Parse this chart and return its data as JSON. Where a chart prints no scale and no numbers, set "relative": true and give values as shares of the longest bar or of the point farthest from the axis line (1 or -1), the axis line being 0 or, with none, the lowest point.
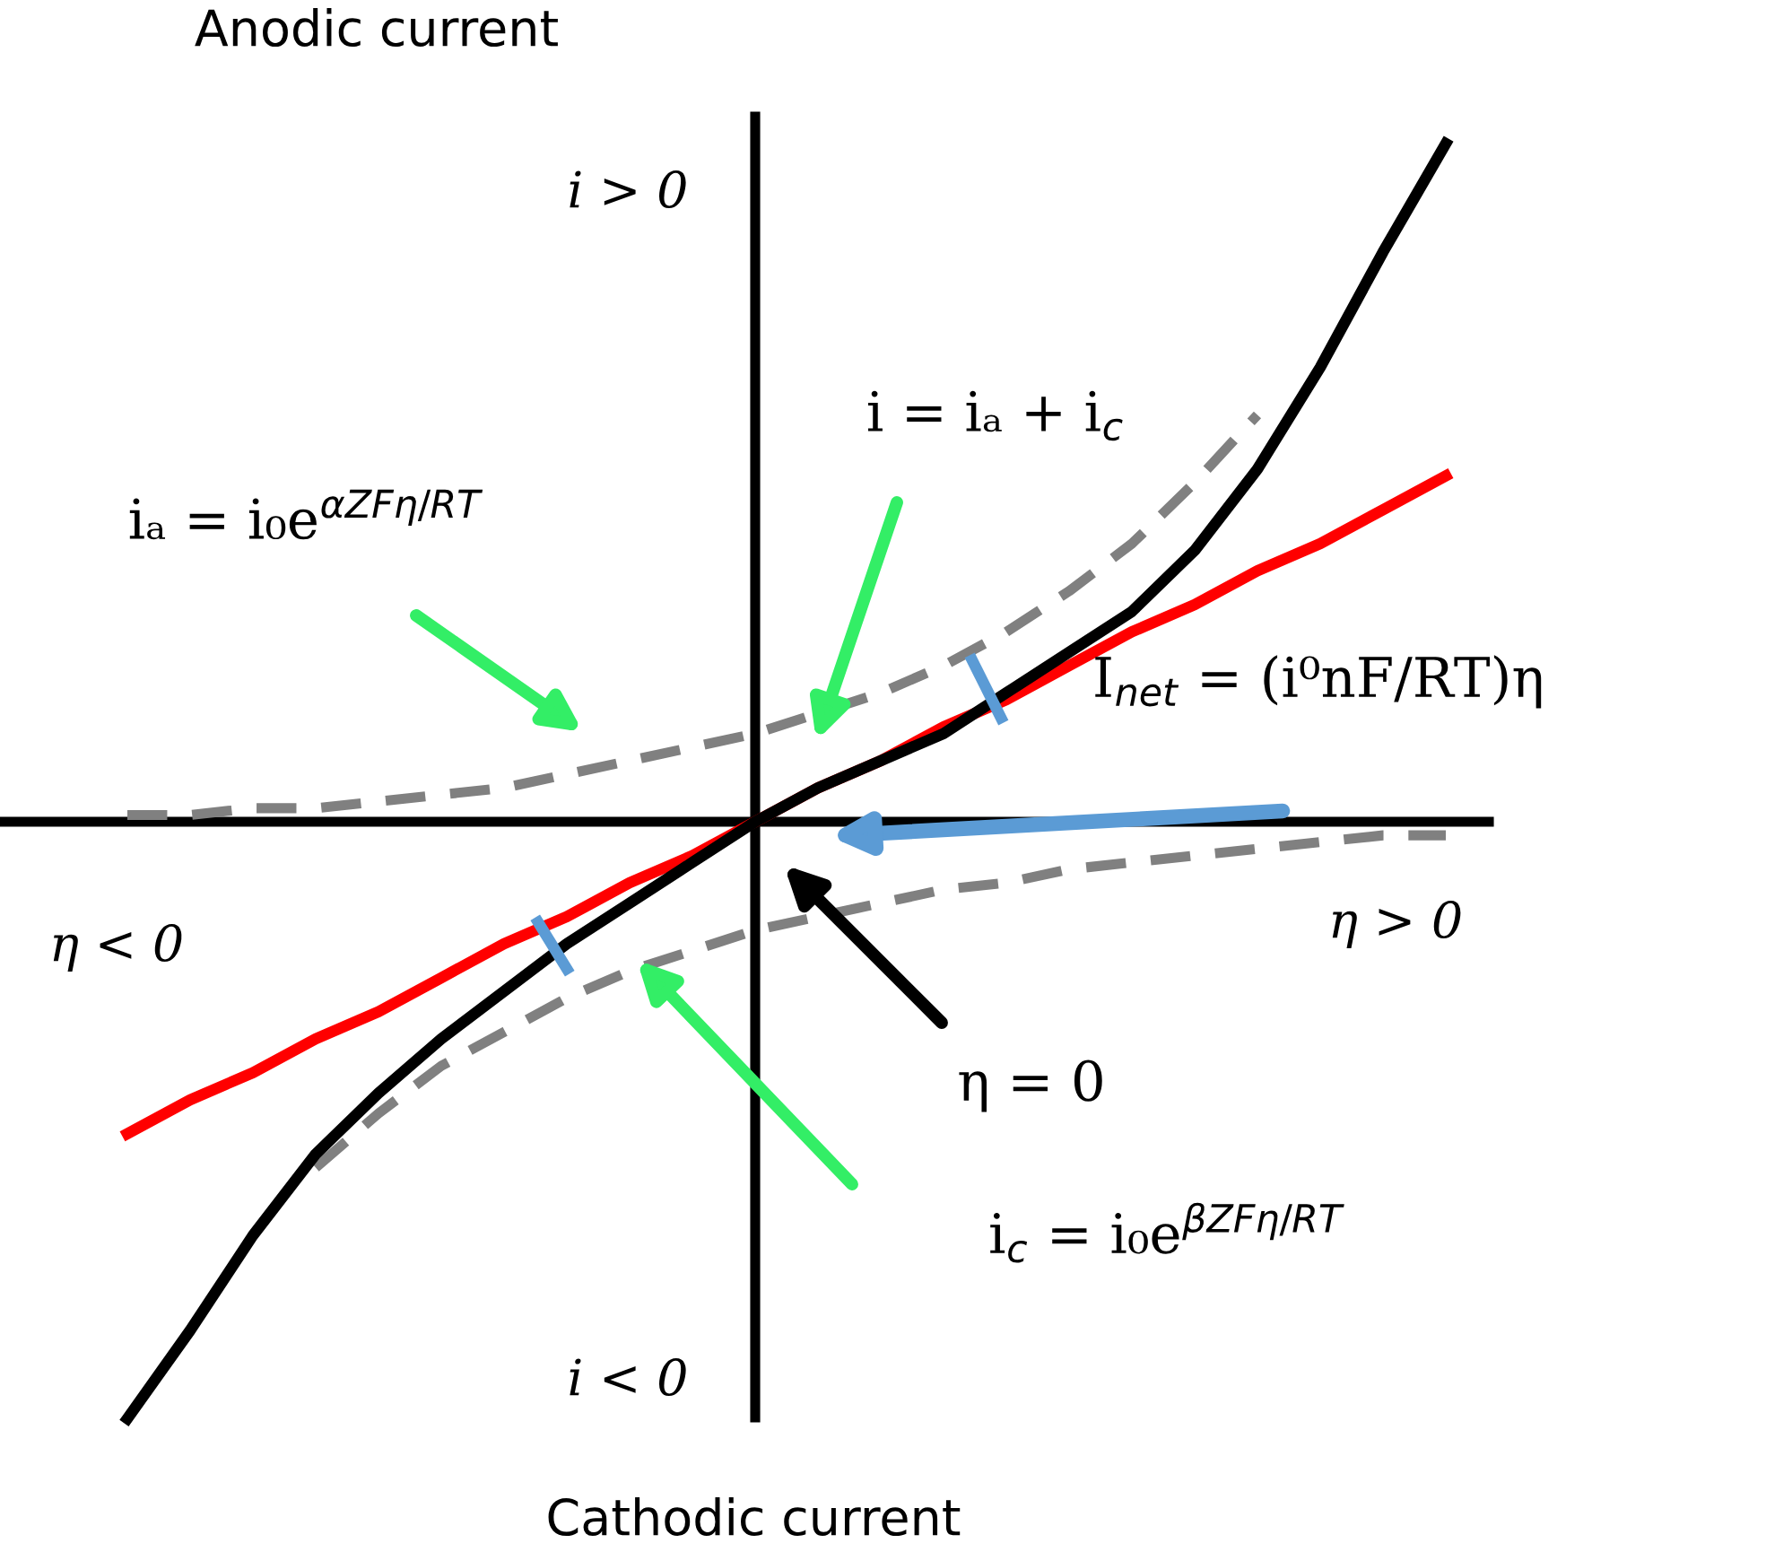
{
  "chart_data": {
    "type": "line",
    "relative": true,
    "line_style": "solid",
    "marker": "none",
    "categories": [
      null,
      null,
      null,
      null,
      null,
      null,
      null,
      null,
      null,
      null,
      null,
      null,
      null,
      null,
      null,
      null,
      null,
      null,
      null,
      null,
      null,
      null
    ],
    "series": [
      {
        "color": "#808080",
        "line_style": "dashed",
        "values": [
          0.01,
          0.01,
          0.02,
          0.02,
          0.03,
          0.04,
          0.05,
          0.07,
          0.09,
          0.11,
          0.13,
          0.16,
          0.19,
          0.23,
          0.28,
          0.34,
          0.41,
          0.5,
          0.6,
          null,
          null,
          null
        ]
      },
      {
        "color": "#808080",
        "line_style": "dashed",
        "values": [
          null,
          null,
          null,
          -0.51,
          -0.43,
          -0.36,
          -0.31,
          -0.26,
          -0.22,
          -0.19,
          -0.16,
          -0.14,
          -0.12,
          -0.1,
          -0.09,
          -0.07,
          -0.06,
          -0.05,
          -0.04,
          -0.03,
          -0.02,
          -0.02
        ]
      },
      {
        "color": "#ff0000",
        "values": [
          -0.46,
          -0.41,
          -0.37,
          -0.32,
          -0.28,
          -0.23,
          -0.18,
          -0.14,
          -0.09,
          -0.05,
          0,
          0.05,
          0.09,
          0.14,
          0.18,
          0.23,
          0.28,
          0.32,
          0.37,
          0.41,
          0.46,
          0.51
        ]
      },
      {
        "color": "#000000",
        "values": [
          -0.88,
          -0.75,
          -0.61,
          -0.49,
          -0.4,
          -0.32,
          -0.25,
          -0.18,
          -0.12,
          -0.06,
          0,
          0.05,
          0.09,
          0.13,
          0.19,
          0.25,
          0.31,
          0.4,
          0.52,
          0.67,
          0.84,
          1.0
        ]
      }
    ],
    "annotations": [
      "Anodic current",
      "i > 0",
      "i = iₐ + i$_{c}$",
      "iₐ = i₀e$^{αZFη/RT}$",
      "I$_{net}$ = (i⁰nF/RT)η",
      "η < 0",
      "η > 0",
      "η = 0",
      "i$_{c}$ = i₀e$^{βZFη/RT}$",
      "i < 0",
      "Cathodic current"
    ]
  }
}
